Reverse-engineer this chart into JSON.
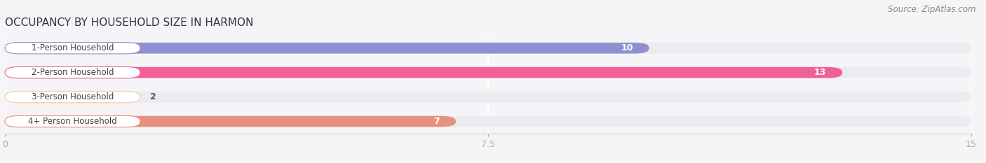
{
  "title": "OCCUPANCY BY HOUSEHOLD SIZE IN HARMON",
  "source": "Source: ZipAtlas.com",
  "categories": [
    "1-Person Household",
    "2-Person Household",
    "3-Person Household",
    "4+ Person Household"
  ],
  "values": [
    10,
    13,
    2,
    7
  ],
  "bar_colors": [
    "#9090d0",
    "#f0609a",
    "#f5c89a",
    "#e89080"
  ],
  "xlim": [
    0,
    15
  ],
  "xticks": [
    0,
    7.5,
    15
  ],
  "background_color": "#f5f5f8",
  "bar_background_color": "#ebebf0",
  "title_fontsize": 11,
  "source_fontsize": 8.5,
  "label_fontsize": 8.5,
  "value_fontsize": 9
}
